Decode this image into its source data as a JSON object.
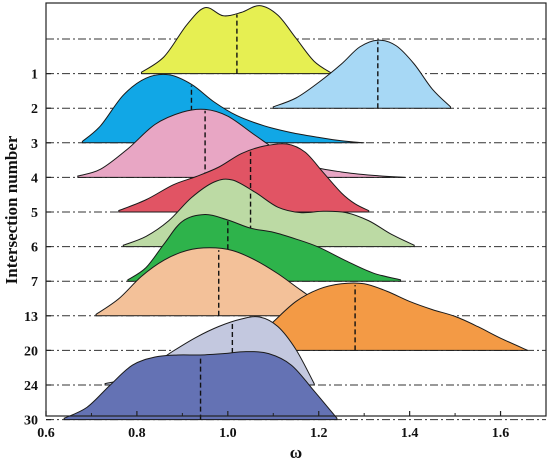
{
  "chart_data": {
    "type": "ridgeline",
    "title": "",
    "xlabel": "ω",
    "ylabel": "Intersection number",
    "xlim": [
      0.6,
      1.7
    ],
    "x_ticks": [
      "0.6",
      "0.8",
      "1.0",
      "1.2",
      "1.4",
      "1.6"
    ],
    "x_tick_values": [
      0.6,
      0.8,
      1.0,
      1.2,
      1.4,
      1.6
    ],
    "y_tick_labels": [
      "1",
      "2",
      "3",
      "4",
      "5",
      "6",
      "7",
      "13",
      "20",
      "24",
      "30"
    ],
    "grid": "dash-dot horizontal baselines",
    "series": [
      {
        "label": "1",
        "color": "#e6ef52",
        "range": [
          0.81,
          1.23
        ],
        "median": 1.02,
        "density": [
          [
            0.81,
            0.02
          ],
          [
            0.86,
            0.25
          ],
          [
            0.91,
            0.72
          ],
          [
            0.95,
            0.97
          ],
          [
            0.99,
            0.85
          ],
          [
            1.03,
            0.9
          ],
          [
            1.07,
            1.0
          ],
          [
            1.11,
            0.86
          ],
          [
            1.15,
            0.52
          ],
          [
            1.19,
            0.18
          ],
          [
            1.23,
            0.0
          ]
        ]
      },
      {
        "label": "2",
        "color": "#a7d8f5",
        "range": [
          1.1,
          1.49
        ],
        "median": 1.33,
        "density": [
          [
            1.1,
            0.02
          ],
          [
            1.15,
            0.15
          ],
          [
            1.2,
            0.38
          ],
          [
            1.25,
            0.65
          ],
          [
            1.29,
            0.9
          ],
          [
            1.33,
            1.0
          ],
          [
            1.37,
            0.92
          ],
          [
            1.41,
            0.65
          ],
          [
            1.45,
            0.28
          ],
          [
            1.49,
            0.02
          ]
        ]
      },
      {
        "label": "3",
        "color": "#11a7e6",
        "range": [
          0.68,
          1.3
        ],
        "median": 0.92,
        "density": [
          [
            0.68,
            0.02
          ],
          [
            0.72,
            0.25
          ],
          [
            0.77,
            0.7
          ],
          [
            0.82,
            0.95
          ],
          [
            0.87,
            1.0
          ],
          [
            0.92,
            0.86
          ],
          [
            0.97,
            0.6
          ],
          [
            1.02,
            0.4
          ],
          [
            1.08,
            0.25
          ],
          [
            1.14,
            0.15
          ],
          [
            1.2,
            0.08
          ],
          [
            1.25,
            0.03
          ],
          [
            1.3,
            0.0
          ]
        ]
      },
      {
        "label": "4",
        "color": "#e8a6c4",
        "range": [
          0.67,
          1.39
        ],
        "median": 0.95,
        "density": [
          [
            0.67,
            0.02
          ],
          [
            0.72,
            0.12
          ],
          [
            0.78,
            0.42
          ],
          [
            0.84,
            0.78
          ],
          [
            0.9,
            0.96
          ],
          [
            0.95,
            1.0
          ],
          [
            1.0,
            0.9
          ],
          [
            1.06,
            0.62
          ],
          [
            1.12,
            0.35
          ],
          [
            1.18,
            0.17
          ],
          [
            1.25,
            0.08
          ],
          [
            1.32,
            0.03
          ],
          [
            1.39,
            0.0
          ]
        ]
      },
      {
        "label": "5",
        "color": "#e15464",
        "range": [
          0.76,
          1.31
        ],
        "median": 1.05,
        "density": [
          [
            0.76,
            0.02
          ],
          [
            0.82,
            0.18
          ],
          [
            0.88,
            0.4
          ],
          [
            0.93,
            0.52
          ],
          [
            0.98,
            0.66
          ],
          [
            1.03,
            0.86
          ],
          [
            1.08,
            0.97
          ],
          [
            1.13,
            1.0
          ],
          [
            1.17,
            0.88
          ],
          [
            1.21,
            0.58
          ],
          [
            1.25,
            0.28
          ],
          [
            1.28,
            0.12
          ],
          [
            1.31,
            0.02
          ]
        ]
      },
      {
        "label": "6",
        "color": "#bcdaa4",
        "range": [
          0.77,
          1.41
        ],
        "median": 1.05,
        "density": [
          [
            0.77,
            0.02
          ],
          [
            0.82,
            0.15
          ],
          [
            0.87,
            0.38
          ],
          [
            0.92,
            0.72
          ],
          [
            0.97,
            0.95
          ],
          [
            1.01,
            0.98
          ],
          [
            1.06,
            0.8
          ],
          [
            1.11,
            0.58
          ],
          [
            1.16,
            0.5
          ],
          [
            1.21,
            0.52
          ],
          [
            1.26,
            0.5
          ],
          [
            1.31,
            0.38
          ],
          [
            1.36,
            0.18
          ],
          [
            1.41,
            0.02
          ]
        ]
      },
      {
        "label": "7",
        "color": "#2eb34b",
        "range": [
          0.78,
          1.38
        ],
        "median": 1.0,
        "density": [
          [
            0.78,
            0.02
          ],
          [
            0.82,
            0.2
          ],
          [
            0.86,
            0.55
          ],
          [
            0.9,
            0.88
          ],
          [
            0.95,
            0.98
          ],
          [
            1.0,
            0.9
          ],
          [
            1.05,
            0.78
          ],
          [
            1.1,
            0.72
          ],
          [
            1.15,
            0.62
          ],
          [
            1.2,
            0.5
          ],
          [
            1.26,
            0.3
          ],
          [
            1.32,
            0.12
          ],
          [
            1.38,
            0.02
          ]
        ]
      },
      {
        "label": "13",
        "color": "#f3c199",
        "range": [
          0.71,
          1.25
        ],
        "median": 0.98,
        "density": [
          [
            0.71,
            0.02
          ],
          [
            0.76,
            0.25
          ],
          [
            0.81,
            0.58
          ],
          [
            0.86,
            0.82
          ],
          [
            0.91,
            0.96
          ],
          [
            0.96,
            1.0
          ],
          [
            1.01,
            0.96
          ],
          [
            1.06,
            0.82
          ],
          [
            1.11,
            0.62
          ],
          [
            1.16,
            0.38
          ],
          [
            1.21,
            0.15
          ],
          [
            1.25,
            0.02
          ]
        ]
      },
      {
        "label": "20",
        "color": "#f39a45",
        "range": [
          1.0,
          1.66
        ],
        "median": 1.28,
        "density": [
          [
            1.0,
            0.02
          ],
          [
            1.05,
            0.1
          ],
          [
            1.1,
            0.42
          ],
          [
            1.15,
            0.72
          ],
          [
            1.2,
            0.9
          ],
          [
            1.25,
            0.98
          ],
          [
            1.3,
            0.98
          ],
          [
            1.35,
            0.87
          ],
          [
            1.4,
            0.72
          ],
          [
            1.45,
            0.6
          ],
          [
            1.5,
            0.5
          ],
          [
            1.55,
            0.35
          ],
          [
            1.6,
            0.18
          ],
          [
            1.66,
            0.0
          ]
        ]
      },
      {
        "label": "24",
        "color": "#c3c8df",
        "range": [
          0.73,
          1.19
        ],
        "median": 1.01,
        "density": [
          [
            0.73,
            0.02
          ],
          [
            0.78,
            0.1
          ],
          [
            0.83,
            0.28
          ],
          [
            0.88,
            0.5
          ],
          [
            0.93,
            0.7
          ],
          [
            0.98,
            0.86
          ],
          [
            1.03,
            0.97
          ],
          [
            1.07,
            1.0
          ],
          [
            1.11,
            0.86
          ],
          [
            1.15,
            0.52
          ],
          [
            1.19,
            0.02
          ]
        ]
      },
      {
        "label": "30",
        "color": "#6472b4",
        "range": [
          0.64,
          1.24
        ],
        "median": 0.94,
        "density": [
          [
            0.64,
            0.02
          ],
          [
            0.69,
            0.18
          ],
          [
            0.74,
            0.5
          ],
          [
            0.79,
            0.8
          ],
          [
            0.84,
            0.92
          ],
          [
            0.89,
            0.95
          ],
          [
            0.94,
            0.95
          ],
          [
            0.99,
            0.97
          ],
          [
            1.04,
            1.0
          ],
          [
            1.09,
            0.97
          ],
          [
            1.14,
            0.8
          ],
          [
            1.19,
            0.42
          ],
          [
            1.24,
            0.02
          ]
        ]
      }
    ]
  }
}
